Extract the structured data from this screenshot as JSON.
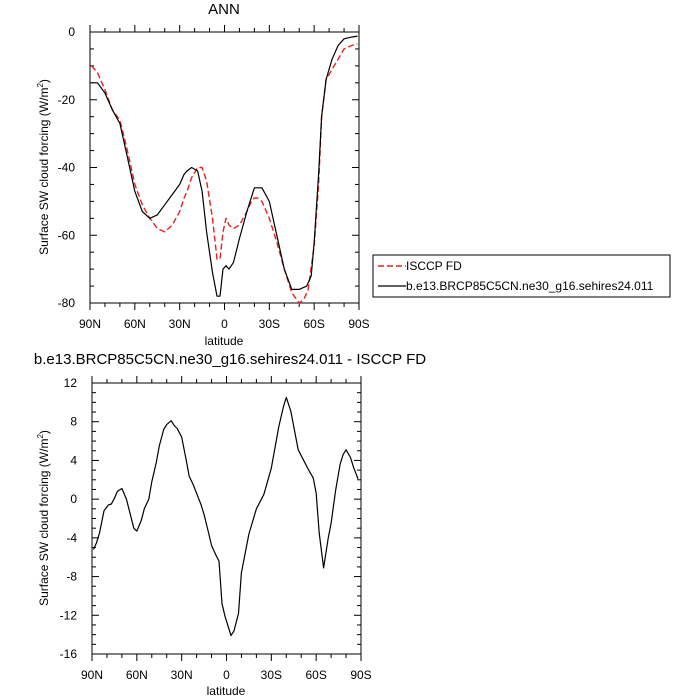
{
  "chart_data": [
    {
      "type": "line",
      "title": "ANN",
      "xlabel": "latitude",
      "ylabel_prefix": "Surface SW cloud forcing (W/m",
      "ylabel_sup": "2",
      "ylabel_suffix": ")",
      "xlim": [
        90,
        -90
      ],
      "ylim": [
        -80,
        0
      ],
      "xticks": [
        90,
        60,
        30,
        0,
        -30,
        -60,
        -90
      ],
      "xtick_labels": [
        "90N",
        "60N",
        "30N",
        "0",
        "30S",
        "60S",
        "90S"
      ],
      "yticks": [
        0,
        -20,
        -40,
        -60,
        -80
      ],
      "ytick_labels": [
        "0",
        "-20",
        "-40",
        "-60",
        "-80"
      ],
      "legend": "bottom-right outside",
      "series": [
        {
          "name": "ISCCP FD",
          "color": "#e8201f",
          "dash": true,
          "x": [
            89,
            85,
            80,
            75,
            70,
            65,
            60,
            55,
            50,
            45,
            40,
            35,
            30,
            27,
            25,
            22,
            18,
            15,
            12,
            8,
            5,
            3,
            1,
            -1,
            -3,
            -6,
            -10,
            -15,
            -18,
            -20,
            -22,
            -25,
            -30,
            -35,
            -40,
            -45,
            -50,
            -53,
            -56,
            -60,
            -63,
            -65,
            -68,
            -72,
            -76,
            -80,
            -85,
            -89
          ],
          "y": [
            -10,
            -12,
            -17,
            -23,
            -26,
            -35,
            -45,
            -51,
            -55,
            -58,
            -59,
            -57,
            -53,
            -49,
            -47,
            -43,
            -40,
            -40,
            -44,
            -55,
            -67,
            -67,
            -59,
            -55,
            -57,
            -58,
            -57,
            -53,
            -50,
            -49,
            -49,
            -50,
            -55,
            -62,
            -70,
            -77,
            -80,
            -79,
            -76,
            -63,
            -45,
            -25,
            -14,
            -11,
            -8,
            -5,
            -4,
            -3.5
          ]
        },
        {
          "name": "b.e13.BRCP85C5CN.ne30_g16.sehires24.011",
          "color": "#000000",
          "dash": false,
          "x": [
            89,
            85,
            80,
            75,
            70,
            65,
            60,
            55,
            50,
            45,
            40,
            35,
            30,
            27,
            25,
            22,
            18,
            15,
            12,
            8,
            5,
            3,
            1,
            -1,
            -3,
            -6,
            -10,
            -15,
            -20,
            -25,
            -30,
            -35,
            -40,
            -45,
            -50,
            -55,
            -58,
            -60,
            -63,
            -65,
            -68,
            -72,
            -76,
            -80,
            -85,
            -89
          ],
          "y": [
            -15,
            -15,
            -18,
            -23,
            -27,
            -37,
            -47,
            -53,
            -55,
            -54,
            -51,
            -48,
            -45,
            -42,
            -41,
            -40,
            -41,
            -47,
            -59,
            -71,
            -78,
            -78,
            -70,
            -69,
            -70,
            -68,
            -61,
            -53,
            -46,
            -46,
            -50,
            -60,
            -70,
            -76,
            -76,
            -75,
            -72,
            -62,
            -42,
            -25,
            -14,
            -8,
            -4,
            -2,
            -1.5,
            -1.2
          ]
        }
      ]
    },
    {
      "type": "line",
      "title": "b.e13.BRCP85C5CN.ne30_g16.sehires24.011 - ISCCP FD",
      "xlabel": "latitude",
      "ylabel_prefix": "Surface SW cloud forcing (W/m",
      "ylabel_sup": "2",
      "ylabel_suffix": ")",
      "xlim": [
        90,
        -90
      ],
      "ylim": [
        -16,
        12
      ],
      "xticks": [
        90,
        60,
        30,
        0,
        -30,
        -60,
        -90
      ],
      "xtick_labels": [
        "90N",
        "60N",
        "30N",
        "0",
        "30S",
        "60S",
        "90S"
      ],
      "yticks": [
        12,
        8,
        4,
        0,
        -4,
        -8,
        -12,
        -16
      ],
      "ytick_labels": [
        "12",
        "8",
        "4",
        "0",
        "-4",
        "-8",
        "-12",
        "-16"
      ],
      "series": [
        {
          "color": "#000000",
          "dash": false,
          "x": [
            89,
            87,
            85,
            82,
            79,
            77,
            75,
            73,
            70,
            67,
            65,
            62,
            60,
            57,
            55,
            52,
            50,
            47,
            45,
            42,
            40,
            37,
            35,
            33,
            30,
            27,
            25,
            22,
            20,
            17,
            15,
            12,
            10,
            7,
            5,
            3,
            1,
            -1,
            -3,
            -5,
            -8,
            -10,
            -15,
            -20,
            -25,
            -30,
            -35,
            -38,
            -40,
            -43,
            -48,
            -53,
            -55,
            -58,
            -60,
            -62,
            -65,
            -68,
            -70,
            -73,
            -76,
            -78,
            -80,
            -83,
            -85,
            -88
          ],
          "y": [
            -5.2,
            -4.5,
            -3.5,
            -1.2,
            -0.6,
            -0.5,
            0.1,
            0.8,
            1.1,
            0,
            -1.2,
            -3,
            -3.3,
            -2.2,
            -1,
            0,
            1.8,
            3.8,
            5.5,
            7.2,
            7.7,
            8.1,
            7.6,
            7.3,
            6.4,
            4.1,
            2.4,
            1.4,
            0.6,
            -0.6,
            -1.6,
            -3.5,
            -4.8,
            -5.8,
            -6.4,
            -10.8,
            -12.1,
            -13.1,
            -14.1,
            -13.6,
            -11.8,
            -7.6,
            -3.6,
            -1,
            0.5,
            3.2,
            7.5,
            9.5,
            10.5,
            9.1,
            5.1,
            3.6,
            3,
            2.2,
            0.6,
            -3.5,
            -7.1,
            -4.1,
            -2.5,
            0.9,
            3.6,
            4.6,
            5.1,
            4.3,
            3.3,
            2.1
          ]
        }
      ]
    }
  ]
}
